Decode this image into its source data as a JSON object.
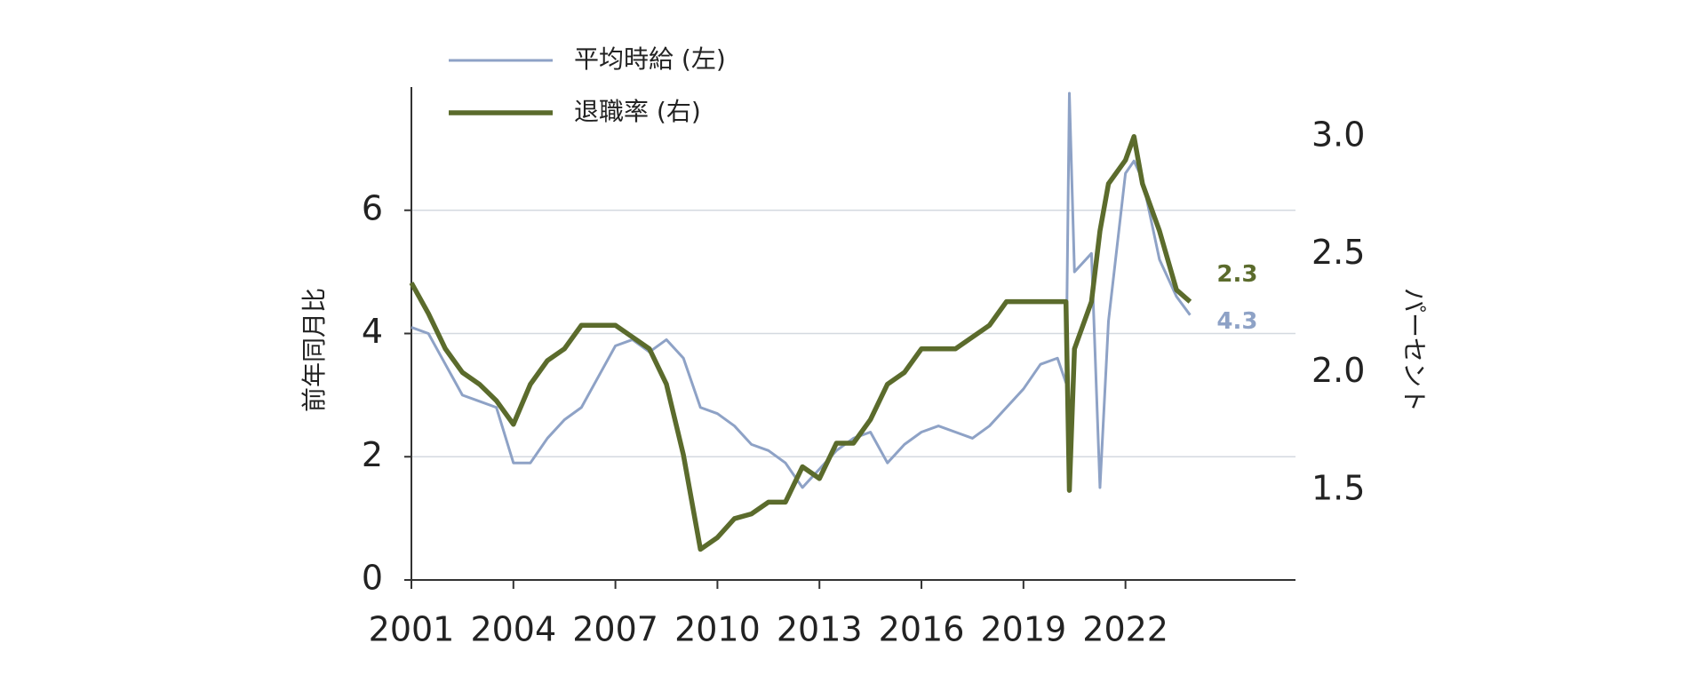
{
  "chart_data": {
    "type": "line",
    "y_label": "前年同月比",
    "y2_label": "パーセント",
    "x": [
      2001,
      2001.5,
      2002,
      2002.5,
      2003,
      2003.5,
      2004,
      2004.5,
      2005,
      2005.5,
      2006,
      2006.5,
      2007,
      2007.5,
      2008,
      2008.5,
      2009,
      2009.5,
      2010,
      2010.5,
      2011,
      2011.5,
      2012,
      2012.5,
      2013,
      2013.5,
      2014,
      2014.5,
      2015,
      2015.5,
      2016,
      2016.5,
      2017,
      2017.5,
      2018,
      2018.5,
      2019,
      2019.5,
      2020,
      2020.25,
      2020.35,
      2020.5,
      2021,
      2021.25,
      2021.5,
      2022,
      2022.25,
      2022.5,
      2023,
      2023.5,
      2023.9
    ],
    "series": [
      {
        "name": "平均時給 (左)",
        "color": "#8ea2c6",
        "axis": "y",
        "values": [
          4.1,
          4.0,
          3.5,
          3.0,
          2.9,
          2.8,
          1.9,
          1.9,
          2.3,
          2.6,
          2.8,
          3.3,
          3.8,
          3.9,
          3.7,
          3.9,
          3.6,
          2.8,
          2.7,
          2.5,
          2.2,
          2.1,
          1.9,
          1.5,
          1.8,
          2.1,
          2.3,
          2.4,
          1.9,
          2.2,
          2.4,
          2.5,
          2.4,
          2.3,
          2.5,
          2.8,
          3.1,
          3.5,
          3.6,
          3.2,
          7.9,
          5.0,
          5.3,
          1.5,
          4.2,
          6.6,
          6.8,
          6.5,
          5.2,
          4.6,
          4.3
        ]
      },
      {
        "name": "退職率 (右)",
        "color": "#5b6b2c",
        "axis": "y2",
        "values": [
          2.38,
          2.25,
          2.1,
          2.0,
          1.95,
          1.88,
          1.78,
          1.95,
          2.05,
          2.1,
          2.2,
          2.2,
          2.2,
          2.15,
          2.1,
          1.95,
          1.65,
          1.25,
          1.3,
          1.38,
          1.4,
          1.45,
          1.45,
          1.6,
          1.55,
          1.7,
          1.7,
          1.8,
          1.95,
          2.0,
          2.1,
          2.1,
          2.1,
          2.15,
          2.2,
          2.3,
          2.3,
          2.3,
          2.3,
          2.3,
          1.5,
          2.1,
          2.3,
          2.6,
          2.8,
          2.9,
          3.0,
          2.8,
          2.6,
          2.35,
          2.3
        ]
      }
    ],
    "xlim": [
      2001,
      2027
    ],
    "xticks": [
      2001,
      2004,
      2007,
      2010,
      2013,
      2016,
      2019,
      2022
    ],
    "ylim": [
      0,
      8
    ],
    "yticks": [
      0,
      2,
      4,
      6
    ],
    "y2lim": [
      1.12,
      3.21
    ],
    "y2ticks": [
      1.5,
      {
        "value": 2.0,
        "label": "2.0"
      },
      2.5,
      {
        "value": 3.0,
        "label": "3.0"
      }
    ],
    "grid": true,
    "legend": "top-left"
  }
}
